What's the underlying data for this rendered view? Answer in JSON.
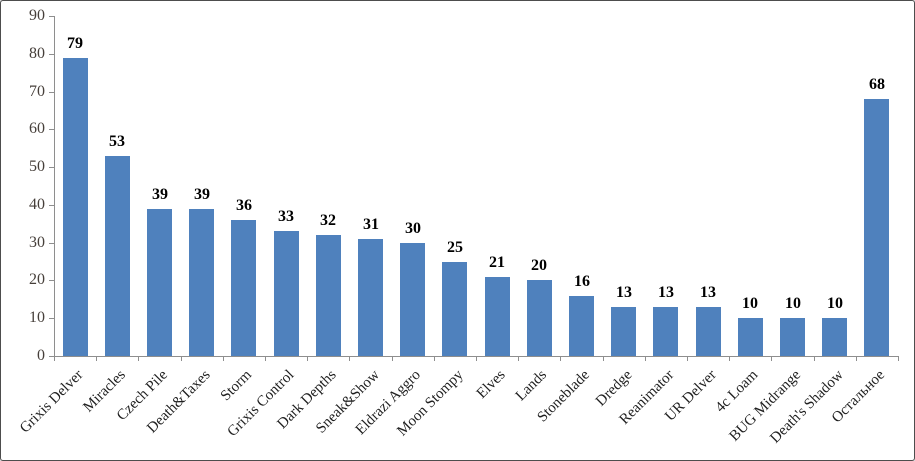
{
  "chart_data": {
    "type": "bar",
    "title": "",
    "xlabel": "",
    "ylabel": "",
    "categories": [
      "Grixis Delver",
      "Miracles",
      "Czech Pile",
      "Death&Taxes",
      "Storm",
      "Grixis Control",
      "Dark Depths",
      "Sneak&Show",
      "Eldrazi Aggro",
      "Moon Stompy",
      "Elves",
      "Lands",
      "Stoneblade",
      "Dredge",
      "Reanimator",
      "UR Delver",
      "4c Loam",
      "BUG Midrange",
      "Death's Shadow",
      "Остальное"
    ],
    "values": [
      79,
      53,
      39,
      39,
      36,
      33,
      32,
      31,
      30,
      25,
      21,
      20,
      16,
      13,
      13,
      13,
      10,
      10,
      10,
      68
    ],
    "data_labels": [
      79,
      53,
      39,
      39,
      36,
      33,
      32,
      31,
      30,
      25,
      21,
      20,
      16,
      13,
      13,
      13,
      10,
      10,
      10,
      68
    ],
    "ylim": [
      0,
      90
    ],
    "yticks": [
      0,
      10,
      20,
      30,
      40,
      50,
      60,
      70,
      80,
      90
    ],
    "grid": false,
    "legend": false,
    "x_labels_rotation_deg": 45,
    "colors": {
      "bar_fill": "#4F81BD",
      "axis_line": "#8E8E8E",
      "y_tick_label": "#463F3A",
      "x_tick_label": "#1F1F1F",
      "value_label": "#000000",
      "background": "#FFFFFF",
      "frame_border": "#4D4D4D"
    }
  }
}
